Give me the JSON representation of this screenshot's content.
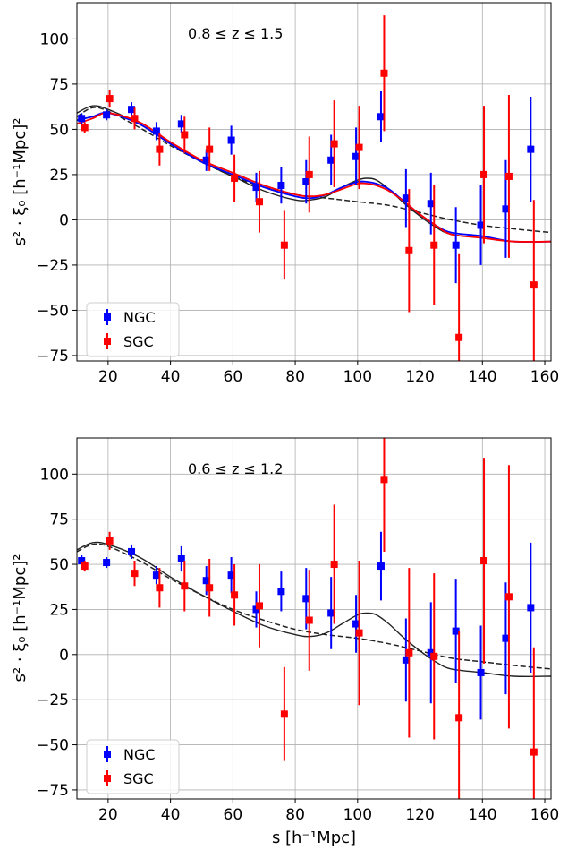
{
  "chart_data": [
    {
      "type": "scatter",
      "annotation": "0.8 ≤ z ≤ 1.5",
      "xlabel": "",
      "ylabel": "s² · ξ₀ [h⁻¹Mpc]²",
      "xlim": [
        10,
        162
      ],
      "ylim": [
        -78,
        120
      ],
      "xticks": [
        "20",
        "40",
        "60",
        "80",
        "100",
        "120",
        "140",
        "160"
      ],
      "yticks": [
        "−75",
        "−50",
        "−25",
        "0",
        "25",
        "50",
        "75",
        "100"
      ],
      "grid": true,
      "legend_position": "bottom-left",
      "series": [
        {
          "name": "NGC",
          "color": "#0000ff",
          "x": [
            11.5,
            19.5,
            27.5,
            35.5,
            43.5,
            51.5,
            59.5,
            67.5,
            75.5,
            83.5,
            91.5,
            99.5,
            107.5,
            115.5,
            123.5,
            131.5,
            139.5,
            147.5,
            155.5
          ],
          "y": [
            56,
            58,
            61,
            49,
            53,
            33,
            44,
            18,
            19,
            21,
            33,
            35,
            57,
            12,
            9,
            -14,
            -3,
            6,
            39
          ],
          "err": [
            3,
            3,
            4,
            5,
            5,
            6,
            8,
            8,
            10,
            12,
            14,
            16,
            14,
            16,
            17,
            21,
            22,
            27,
            29
          ]
        },
        {
          "name": "SGC",
          "color": "#ff0000",
          "x": [
            12.5,
            20.5,
            28.5,
            36.5,
            44.5,
            52.5,
            60.5,
            68.5,
            76.5,
            84.5,
            92.5,
            100.5,
            108.5,
            116.5,
            124.5,
            132.5,
            140.5,
            148.5,
            156.5
          ],
          "y": [
            51,
            67,
            56,
            39,
            47,
            39,
            23,
            10,
            -14,
            25,
            42,
            40,
            81,
            -17,
            -14,
            -65,
            25,
            24,
            -36
          ],
          "err": [
            3,
            5,
            6,
            9,
            10,
            12,
            13,
            17,
            19,
            21,
            24,
            23,
            32,
            34,
            33,
            46,
            38,
            45,
            47
          ]
        }
      ],
      "curves": [
        {
          "style": "black-dashed",
          "x": [
            10,
            15,
            20,
            30,
            40,
            50,
            60,
            70,
            80,
            90,
            100,
            110,
            120,
            130,
            140,
            150,
            162
          ],
          "y": [
            57,
            62,
            60,
            51,
            41,
            32,
            24,
            18,
            14,
            12,
            10,
            8,
            4,
            0,
            -3,
            -5,
            -7
          ]
        },
        {
          "style": "black-solid",
          "x": [
            10,
            15,
            20,
            30,
            40,
            50,
            60,
            70,
            80,
            85,
            90,
            95,
            100,
            103,
            106,
            110,
            115,
            120,
            125,
            130,
            140,
            150,
            162
          ],
          "y": [
            59,
            63,
            61,
            53,
            42,
            32,
            24,
            16,
            11,
            11,
            13,
            18,
            22,
            23,
            22,
            17,
            9,
            2,
            -4,
            -8,
            -10,
            -12,
            -12
          ]
        },
        {
          "style": "blue-solid",
          "x": [
            10,
            15,
            20,
            30,
            40,
            50,
            60,
            70,
            80,
            85,
            90,
            95,
            100,
            103,
            106,
            110,
            115,
            120,
            125,
            130,
            140,
            150,
            162
          ],
          "y": [
            55,
            57,
            59,
            53,
            42,
            32,
            25,
            18,
            13,
            12,
            14,
            18,
            21,
            21,
            20,
            17,
            10,
            3,
            -3,
            -7,
            -9,
            -12,
            -12
          ]
        },
        {
          "style": "red-solid",
          "x": [
            10,
            15,
            20,
            30,
            40,
            50,
            60,
            70,
            80,
            85,
            90,
            95,
            100,
            103,
            106,
            110,
            115,
            120,
            125,
            130,
            140,
            150,
            162
          ],
          "y": [
            53,
            56,
            59,
            54,
            43,
            33,
            26,
            19,
            14,
            13,
            14,
            17,
            20,
            20,
            19,
            16,
            10,
            3,
            -3,
            -8,
            -10,
            -12,
            -12
          ]
        }
      ]
    },
    {
      "type": "scatter",
      "annotation": "0.6 ≤ z ≤ 1.2",
      "xlabel": "s [h⁻¹Mpc]",
      "ylabel": "s² · ξ₀ [h⁻¹Mpc]²",
      "xlim": [
        10,
        162
      ],
      "ylim": [
        -80,
        120
      ],
      "xticks": [
        "20",
        "40",
        "60",
        "80",
        "100",
        "120",
        "140",
        "160"
      ],
      "yticks": [
        "−75",
        "−50",
        "−25",
        "0",
        "25",
        "50",
        "75",
        "100"
      ],
      "grid": true,
      "legend_position": "bottom-left",
      "series": [
        {
          "name": "NGC",
          "color": "#0000ff",
          "x": [
            11.5,
            19.5,
            27.5,
            35.5,
            43.5,
            51.5,
            59.5,
            67.5,
            75.5,
            83.5,
            91.5,
            99.5,
            107.5,
            115.5,
            123.5,
            131.5,
            139.5,
            147.5,
            155.5
          ],
          "y": [
            52,
            51,
            57,
            44,
            53,
            41,
            44,
            25,
            35,
            31,
            23,
            17,
            49,
            -3,
            1,
            13,
            -10,
            9,
            26
          ],
          "err": [
            3,
            3,
            4,
            5,
            7,
            8,
            10,
            10,
            11,
            17,
            20,
            16,
            19,
            23,
            28,
            29,
            26,
            31,
            36
          ]
        },
        {
          "name": "SGC",
          "color": "#ff0000",
          "x": [
            12.5,
            20.5,
            28.5,
            36.5,
            44.5,
            52.5,
            60.5,
            68.5,
            76.5,
            84.5,
            92.5,
            100.5,
            108.5,
            116.5,
            124.5,
            132.5,
            140.5,
            148.5,
            156.5
          ],
          "y": [
            49,
            63,
            45,
            37,
            38,
            37,
            33,
            27,
            -33,
            19,
            50,
            12,
            97,
            1,
            -1,
            -35,
            52,
            32,
            -54
          ],
          "err": [
            3,
            5,
            7,
            11,
            14,
            16,
            17,
            23,
            26,
            28,
            33,
            40,
            40,
            47,
            46,
            48,
            57,
            73,
            58
          ]
        }
      ],
      "curves": [
        {
          "style": "black-dashed",
          "x": [
            10,
            15,
            20,
            30,
            40,
            50,
            60,
            70,
            80,
            90,
            100,
            110,
            120,
            130,
            140,
            150,
            162
          ],
          "y": [
            57,
            61,
            60,
            52,
            42,
            33,
            25,
            19,
            14,
            11,
            9,
            6,
            2,
            -2,
            -4,
            -6,
            -8
          ]
        },
        {
          "style": "black-solid",
          "x": [
            10,
            15,
            20,
            30,
            40,
            50,
            60,
            70,
            80,
            85,
            90,
            95,
            100,
            103,
            106,
            110,
            115,
            120,
            125,
            130,
            140,
            150,
            162
          ],
          "y": [
            58,
            62,
            61,
            54,
            43,
            33,
            24,
            16,
            11,
            10,
            12,
            17,
            22,
            23,
            22,
            17,
            9,
            2,
            -4,
            -8,
            -10,
            -12,
            -12
          ]
        }
      ]
    }
  ]
}
